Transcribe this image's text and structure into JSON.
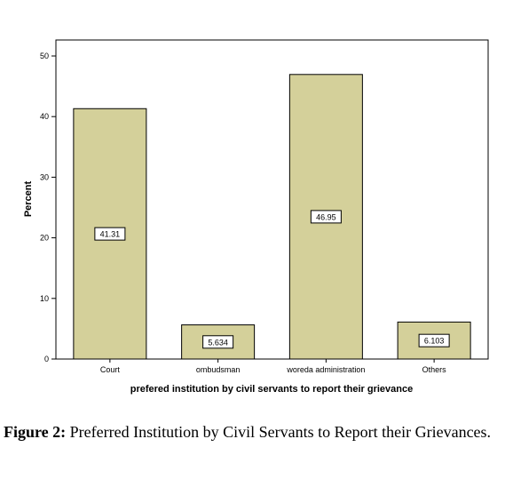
{
  "chart_data": {
    "type": "bar",
    "categories": [
      "Court",
      "ombudsman",
      "woreda administration",
      "Others"
    ],
    "values": [
      41.31,
      5.634,
      46.95,
      6.103
    ],
    "data_labels": [
      "41.31",
      "5.634",
      "46.95",
      "6.103"
    ],
    "ylabel": "Percent",
    "xlabel": "prefered institution by civil servants to report their grievance",
    "ylim": [
      0,
      50
    ],
    "yticks": [
      0,
      10,
      20,
      30,
      40,
      50
    ],
    "ytick_labels": [
      "0",
      "10",
      "20",
      "30",
      "40",
      "50"
    ],
    "grid": false,
    "bar_color": "#d4d09a",
    "bar_edge_color": "#000000"
  },
  "caption": {
    "label": "Figure 2:",
    "text": " Preferred Institution by Civil Servants to Report their Grievances."
  }
}
